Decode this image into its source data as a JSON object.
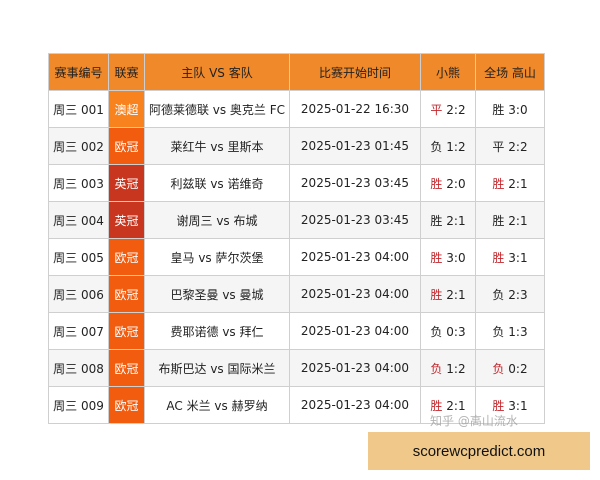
{
  "headers": [
    "赛事编号",
    "联赛",
    "主队 VS 客队",
    "比赛开始时间",
    "小熊",
    "全场 高山"
  ],
  "colors": {
    "header": "#f0892a",
    "澳超": "#f7821e",
    "欧冠": "#f25c0f",
    "英冠": "#c9361f",
    "red": "#c0272d"
  },
  "rows": [
    {
      "id": "周三 001",
      "league": "澳超",
      "match": "阿德莱德联 vs 奥克兰 FC",
      "time": "2025-01-22 16:30",
      "a_res": "平",
      "a_score": "2:2",
      "a_red": true,
      "b_res": "胜",
      "b_score": "3:0",
      "b_red": false
    },
    {
      "id": "周三 002",
      "league": "欧冠",
      "match": "莱红牛 vs 里斯本",
      "time": "2025-01-23 01:45",
      "a_res": "负",
      "a_score": "1:2",
      "a_red": false,
      "b_res": "平",
      "b_score": "2:2",
      "b_red": false
    },
    {
      "id": "周三 003",
      "league": "英冠",
      "match": "利兹联 vs 诺维奇",
      "time": "2025-01-23 03:45",
      "a_res": "胜",
      "a_score": "2:0",
      "a_red": true,
      "b_res": "胜",
      "b_score": "2:1",
      "b_red": true
    },
    {
      "id": "周三 004",
      "league": "英冠",
      "match": "谢周三 vs 布城",
      "time": "2025-01-23 03:45",
      "a_res": "胜",
      "a_score": "2:1",
      "a_red": false,
      "b_res": "胜",
      "b_score": "2:1",
      "b_red": false
    },
    {
      "id": "周三 005",
      "league": "欧冠",
      "match": "皇马 vs 萨尔茨堡",
      "time": "2025-01-23 04:00",
      "a_res": "胜",
      "a_score": "3:0",
      "a_red": true,
      "b_res": "胜",
      "b_score": "3:1",
      "b_red": true
    },
    {
      "id": "周三 006",
      "league": "欧冠",
      "match": "巴黎圣曼 vs 曼城",
      "time": "2025-01-23 04:00",
      "a_res": "胜",
      "a_score": "2:1",
      "a_red": true,
      "b_res": "负",
      "b_score": "2:3",
      "b_red": false
    },
    {
      "id": "周三 007",
      "league": "欧冠",
      "match": "费耶诺德 vs 拜仁",
      "time": "2025-01-23 04:00",
      "a_res": "负",
      "a_score": "0:3",
      "a_red": false,
      "b_res": "负",
      "b_score": "1:3",
      "b_red": false
    },
    {
      "id": "周三 008",
      "league": "欧冠",
      "match": "布斯巴达 vs 国际米兰",
      "time": "2025-01-23 04:00",
      "a_res": "负",
      "a_score": "1:2",
      "a_red": true,
      "b_res": "负",
      "b_score": "0:2",
      "b_red": true
    },
    {
      "id": "周三 009",
      "league": "欧冠",
      "match": "AC 米兰 vs 赫罗纳",
      "time": "2025-01-23 04:00",
      "a_res": "胜",
      "a_score": "2:1",
      "a_red": true,
      "b_res": "胜",
      "b_score": "3:1",
      "b_red": true
    }
  ],
  "watermark": "知乎 @高山流水",
  "site_banner": "scorewcpredict.com"
}
